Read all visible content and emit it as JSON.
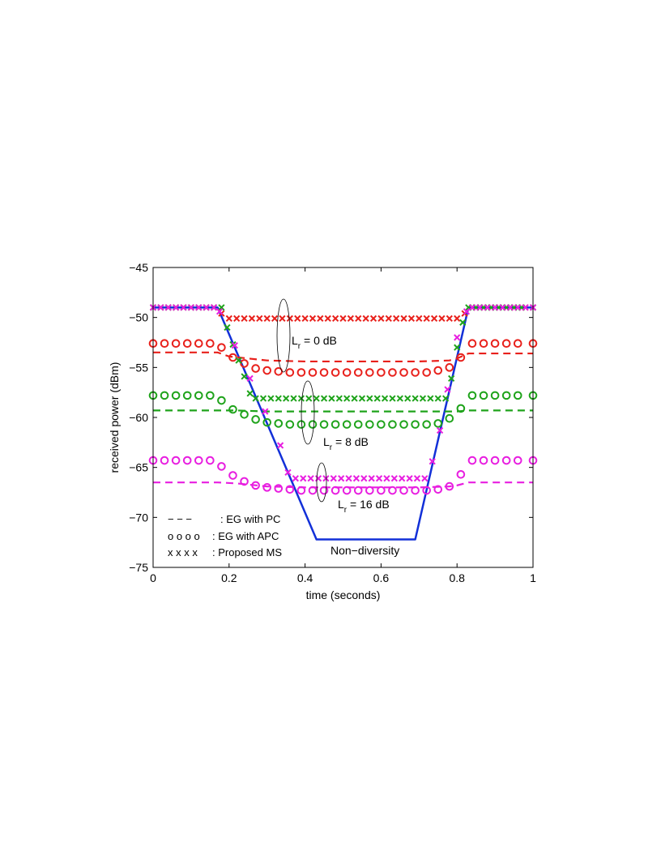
{
  "chart_data": {
    "type": "line",
    "title": "",
    "xlabel": "time (seconds)",
    "ylabel": "received power (dBm)",
    "xlim": [
      0,
      1
    ],
    "ylim": [
      -75,
      -45
    ],
    "xticks": [
      "0",
      "0.2",
      "0.4",
      "0.6",
      "0.8",
      "1"
    ],
    "yticks": [
      "−45",
      "−50",
      "−55",
      "−60",
      "−65",
      "−70",
      "−75"
    ],
    "grid": false,
    "legend": [
      {
        "marker": "− − −",
        "label": ": EG with PC"
      },
      {
        "marker": "o o o o",
        "label": ": EG with APC"
      },
      {
        "marker": "x x x x",
        "label": ": Proposed MS"
      }
    ],
    "annotations": {
      "lr0": {
        "main": "L",
        "sub": "r",
        "rest": " = 0 dB"
      },
      "lr8": {
        "main": "L",
        "sub": "r",
        "rest": " = 8 dB"
      },
      "lr16": {
        "main": "L",
        "sub": "r",
        "rest": " = 16 dB"
      },
      "nondiv": "Non−diversity"
    },
    "colors": {
      "red": "#e8201b",
      "green": "#1fa31b",
      "magenta": "#e81ee0",
      "blue": "#1230d8"
    },
    "nondiversity": {
      "name": "Non−diversity",
      "x": [
        0,
        0.17,
        0.43,
        0.69,
        0.83,
        1
      ],
      "y": [
        -49,
        -49,
        -72.2,
        -72.2,
        -49,
        -49
      ]
    },
    "series": [
      {
        "group": "Lr = 0 dB",
        "method": "EG with PC",
        "color": "red",
        "x": [
          0,
          0.17,
          0.2,
          0.3,
          0.4,
          0.5,
          0.6,
          0.7,
          0.78,
          0.8,
          0.83,
          1
        ],
        "y": [
          -53.5,
          -53.5,
          -53.9,
          -54.3,
          -54.4,
          -54.4,
          -54.4,
          -54.4,
          -54.3,
          -54.1,
          -53.6,
          -53.6
        ]
      },
      {
        "group": "Lr = 0 dB",
        "method": "EG with APC",
        "color": "red",
        "x": [
          0,
          0.03,
          0.06,
          0.09,
          0.12,
          0.15,
          0.18,
          0.21,
          0.24,
          0.27,
          0.3,
          0.33,
          0.36,
          0.39,
          0.42,
          0.45,
          0.48,
          0.51,
          0.54,
          0.57,
          0.6,
          0.63,
          0.66,
          0.69,
          0.72,
          0.75,
          0.78,
          0.81,
          0.84,
          0.87,
          0.9,
          0.93,
          0.96,
          1.0
        ],
        "y": [
          -52.6,
          -52.6,
          -52.6,
          -52.6,
          -52.6,
          -52.6,
          -53.0,
          -54.0,
          -54.6,
          -55.1,
          -55.3,
          -55.4,
          -55.5,
          -55.5,
          -55.5,
          -55.5,
          -55.5,
          -55.5,
          -55.5,
          -55.5,
          -55.5,
          -55.5,
          -55.5,
          -55.5,
          -55.5,
          -55.3,
          -55.0,
          -54.0,
          -52.6,
          -52.6,
          -52.6,
          -52.6,
          -52.6,
          -52.6
        ]
      },
      {
        "group": "Lr = 0 dB",
        "method": "Proposed MS",
        "color": "red",
        "x": [
          0,
          0.02,
          0.04,
          0.06,
          0.08,
          0.1,
          0.12,
          0.14,
          0.16,
          0.18,
          0.2,
          0.22,
          0.24,
          0.26,
          0.28,
          0.3,
          0.32,
          0.34,
          0.36,
          0.38,
          0.4,
          0.42,
          0.44,
          0.46,
          0.48,
          0.5,
          0.52,
          0.54,
          0.56,
          0.58,
          0.6,
          0.62,
          0.64,
          0.66,
          0.68,
          0.7,
          0.72,
          0.74,
          0.76,
          0.78,
          0.8,
          0.82,
          0.84,
          0.86,
          0.88,
          0.9,
          0.92,
          0.94,
          0.96,
          0.98,
          1.0
        ],
        "y": [
          -49,
          -49,
          -49,
          -49,
          -49,
          -49,
          -49,
          -49,
          -49,
          -49.6,
          -50.1,
          -50.1,
          -50.1,
          -50.1,
          -50.1,
          -50.1,
          -50.1,
          -50.1,
          -50.1,
          -50.1,
          -50.1,
          -50.1,
          -50.1,
          -50.1,
          -50.1,
          -50.1,
          -50.1,
          -50.1,
          -50.1,
          -50.1,
          -50.1,
          -50.1,
          -50.1,
          -50.1,
          -50.1,
          -50.1,
          -50.1,
          -50.1,
          -50.1,
          -50.1,
          -50.1,
          -49.6,
          -49,
          -49,
          -49,
          -49,
          -49,
          -49,
          -49,
          -49,
          -49
        ]
      },
      {
        "group": "Lr = 8 dB",
        "method": "EG with PC",
        "color": "green",
        "x": [
          0,
          0.17,
          0.22,
          0.3,
          0.4,
          0.5,
          0.6,
          0.7,
          0.78,
          0.8,
          0.83,
          1
        ],
        "y": [
          -59.3,
          -59.3,
          -59.3,
          -59.4,
          -59.4,
          -59.4,
          -59.4,
          -59.4,
          -59.4,
          -59.4,
          -59.3,
          -59.3
        ]
      },
      {
        "group": "Lr = 8 dB",
        "method": "EG with APC",
        "color": "green",
        "x": [
          0,
          0.03,
          0.06,
          0.09,
          0.12,
          0.15,
          0.18,
          0.21,
          0.24,
          0.27,
          0.3,
          0.33,
          0.36,
          0.39,
          0.42,
          0.45,
          0.48,
          0.51,
          0.54,
          0.57,
          0.6,
          0.63,
          0.66,
          0.69,
          0.72,
          0.75,
          0.78,
          0.81,
          0.84,
          0.87,
          0.9,
          0.93,
          0.96,
          1.0
        ],
        "y": [
          -57.8,
          -57.8,
          -57.8,
          -57.8,
          -57.8,
          -57.8,
          -58.3,
          -59.2,
          -59.7,
          -60.2,
          -60.5,
          -60.6,
          -60.7,
          -60.7,
          -60.7,
          -60.7,
          -60.7,
          -60.7,
          -60.7,
          -60.7,
          -60.7,
          -60.7,
          -60.7,
          -60.7,
          -60.7,
          -60.6,
          -60.1,
          -59.1,
          -57.8,
          -57.8,
          -57.8,
          -57.8,
          -57.8,
          -57.8
        ]
      },
      {
        "group": "Lr = 8 dB",
        "method": "Proposed MS",
        "color": "green",
        "x": [
          0,
          0.02,
          0.04,
          0.06,
          0.08,
          0.1,
          0.12,
          0.14,
          0.16,
          0.18,
          0.195,
          0.21,
          0.225,
          0.24,
          0.255,
          0.27,
          0.29,
          0.31,
          0.33,
          0.35,
          0.37,
          0.39,
          0.41,
          0.43,
          0.45,
          0.47,
          0.49,
          0.51,
          0.53,
          0.55,
          0.57,
          0.59,
          0.61,
          0.63,
          0.65,
          0.67,
          0.69,
          0.71,
          0.73,
          0.75,
          0.77,
          0.785,
          0.8,
          0.815,
          0.83,
          0.85,
          0.87,
          0.89,
          0.91,
          0.93,
          0.95,
          0.97,
          1.0
        ],
        "y": [
          -49,
          -49,
          -49,
          -49,
          -49,
          -49,
          -49,
          -49,
          -49,
          -49,
          -51.0,
          -52.7,
          -54.3,
          -55.9,
          -57.6,
          -58.1,
          -58.1,
          -58.1,
          -58.1,
          -58.1,
          -58.1,
          -58.1,
          -58.1,
          -58.1,
          -58.1,
          -58.1,
          -58.1,
          -58.1,
          -58.1,
          -58.1,
          -58.1,
          -58.1,
          -58.1,
          -58.1,
          -58.1,
          -58.1,
          -58.1,
          -58.1,
          -58.1,
          -58.1,
          -58.1,
          -56.1,
          -53.0,
          -50.5,
          -49,
          -49,
          -49,
          -49,
          -49,
          -49,
          -49,
          -49,
          -49
        ]
      },
      {
        "group": "Lr = 16 dB",
        "method": "EG with PC",
        "color": "magenta",
        "x": [
          0,
          0.17,
          0.22,
          0.3,
          0.4,
          0.5,
          0.6,
          0.7,
          0.78,
          0.8,
          0.83,
          1
        ],
        "y": [
          -66.5,
          -66.5,
          -66.6,
          -66.9,
          -67.0,
          -67.0,
          -67.0,
          -67.0,
          -66.9,
          -66.8,
          -66.5,
          -66.5
        ]
      },
      {
        "group": "Lr = 16 dB",
        "method": "EG with APC",
        "color": "magenta",
        "x": [
          0,
          0.03,
          0.06,
          0.09,
          0.12,
          0.15,
          0.18,
          0.21,
          0.24,
          0.27,
          0.3,
          0.33,
          0.36,
          0.39,
          0.42,
          0.45,
          0.48,
          0.51,
          0.54,
          0.57,
          0.6,
          0.63,
          0.66,
          0.69,
          0.72,
          0.75,
          0.78,
          0.81,
          0.84,
          0.87,
          0.9,
          0.93,
          0.96,
          1.0
        ],
        "y": [
          -64.3,
          -64.3,
          -64.3,
          -64.3,
          -64.3,
          -64.3,
          -64.9,
          -65.8,
          -66.4,
          -66.8,
          -67.0,
          -67.1,
          -67.2,
          -67.3,
          -67.3,
          -67.3,
          -67.3,
          -67.3,
          -67.3,
          -67.3,
          -67.3,
          -67.3,
          -67.3,
          -67.3,
          -67.3,
          -67.2,
          -66.9,
          -65.7,
          -64.3,
          -64.3,
          -64.3,
          -64.3,
          -64.3,
          -64.3
        ]
      },
      {
        "group": "Lr = 16 dB",
        "method": "Proposed MS",
        "color": "magenta",
        "x": [
          0,
          0.02,
          0.04,
          0.06,
          0.08,
          0.1,
          0.12,
          0.14,
          0.16,
          0.175,
          0.215,
          0.255,
          0.295,
          0.335,
          0.355,
          0.375,
          0.395,
          0.415,
          0.435,
          0.455,
          0.475,
          0.495,
          0.515,
          0.535,
          0.555,
          0.575,
          0.595,
          0.615,
          0.635,
          0.655,
          0.675,
          0.695,
          0.715,
          0.735,
          0.755,
          0.775,
          0.8,
          0.825,
          0.84,
          0.86,
          0.88,
          0.9,
          0.92,
          0.94,
          0.96,
          0.98,
          1.0
        ],
        "y": [
          -49,
          -49,
          -49,
          -49,
          -49,
          -49,
          -49,
          -49,
          -49,
          -49.4,
          -52.8,
          -56.1,
          -59.4,
          -62.8,
          -65.5,
          -66.1,
          -66.1,
          -66.1,
          -66.1,
          -66.1,
          -66.1,
          -66.1,
          -66.1,
          -66.1,
          -66.1,
          -66.1,
          -66.1,
          -66.1,
          -66.1,
          -66.1,
          -66.1,
          -66.1,
          -66.1,
          -64.4,
          -61.3,
          -57.2,
          -52.0,
          -49.4,
          -49,
          -49,
          -49,
          -49,
          -49,
          -49,
          -49,
          -49,
          -49
        ]
      }
    ]
  }
}
